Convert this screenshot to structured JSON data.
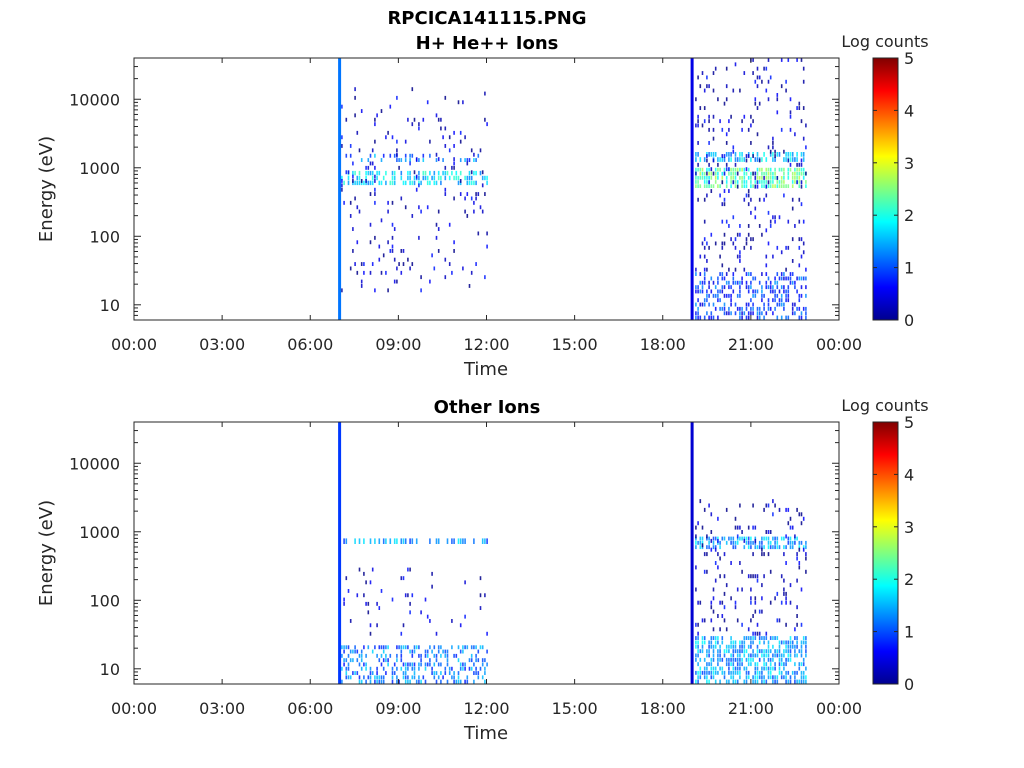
{
  "figure_title": "RPCICA141115.PNG",
  "chart_data": [
    {
      "type": "heatmap",
      "title": "H+ He++ Ions",
      "xlabel": "Time",
      "ylabel": "Energy (eV)",
      "x_ticks": [
        "00:00",
        "03:00",
        "06:00",
        "09:00",
        "12:00",
        "15:00",
        "18:00",
        "21:00",
        "00:00"
      ],
      "xlim_hours": [
        0,
        24
      ],
      "y_scale": "log",
      "y_ticks": [
        "10",
        "100",
        "1000",
        "10000"
      ],
      "ylim": [
        6,
        40000
      ],
      "colorbar": {
        "label": "Log counts",
        "ticks": [
          "0",
          "1",
          "2",
          "3",
          "4",
          "5"
        ],
        "range": [
          0,
          5
        ],
        "colormap": "jet"
      },
      "vertical_lines": [
        {
          "time_h": 7.0,
          "value": 1.2
        },
        {
          "time_h": 19.0,
          "value": 0.5
        }
      ],
      "regions": [
        {
          "t0": 7.05,
          "t1": 12.0,
          "e0": 550,
          "e1": 900,
          "value": 1.7,
          "density": 0.55
        },
        {
          "t0": 7.05,
          "t1": 12.0,
          "e0": 1200,
          "e1": 1600,
          "value": 1.2,
          "density": 0.25
        },
        {
          "t0": 7.05,
          "t1": 12.0,
          "e0": 15,
          "e1": 15000,
          "value": 0.3,
          "density": 0.06
        },
        {
          "t0": 19.1,
          "t1": 22.9,
          "e0": 500,
          "e1": 1000,
          "value": 2.3,
          "density": 0.7
        },
        {
          "t0": 19.1,
          "t1": 22.9,
          "e0": 1200,
          "e1": 1700,
          "value": 1.6,
          "density": 0.5
        },
        {
          "t0": 19.1,
          "t1": 22.9,
          "e0": 6,
          "e1": 30,
          "value": 0.9,
          "density": 0.45
        },
        {
          "t0": 19.1,
          "t1": 22.9,
          "e0": 30,
          "e1": 40000,
          "value": 0.3,
          "density": 0.1
        }
      ]
    },
    {
      "type": "heatmap",
      "title": "Other Ions",
      "xlabel": "Time",
      "ylabel": "Energy (eV)",
      "x_ticks": [
        "00:00",
        "03:00",
        "06:00",
        "09:00",
        "12:00",
        "15:00",
        "18:00",
        "21:00",
        "00:00"
      ],
      "xlim_hours": [
        0,
        24
      ],
      "y_scale": "log",
      "y_ticks": [
        "10",
        "100",
        "1000",
        "10000"
      ],
      "ylim": [
        6,
        40000
      ],
      "colorbar": {
        "label": "Log counts",
        "ticks": [
          "0",
          "1",
          "2",
          "3",
          "4",
          "5"
        ],
        "range": [
          0,
          5
        ],
        "colormap": "jet"
      },
      "vertical_lines": [
        {
          "time_h": 7.0,
          "value": 0.9
        },
        {
          "time_h": 19.0,
          "value": 0.4
        }
      ],
      "regions": [
        {
          "t0": 7.05,
          "t1": 12.0,
          "e0": 650,
          "e1": 800,
          "value": 1.3,
          "density": 0.5
        },
        {
          "t0": 7.05,
          "t1": 12.0,
          "e0": 6,
          "e1": 22,
          "value": 1.2,
          "density": 0.4
        },
        {
          "t0": 7.05,
          "t1": 12.0,
          "e0": 30,
          "e1": 300,
          "value": 0.3,
          "density": 0.04
        },
        {
          "t0": 19.1,
          "t1": 22.9,
          "e0": 550,
          "e1": 850,
          "value": 1.4,
          "density": 0.6
        },
        {
          "t0": 19.1,
          "t1": 22.9,
          "e0": 6,
          "e1": 30,
          "value": 1.4,
          "density": 0.6
        },
        {
          "t0": 19.1,
          "t1": 22.9,
          "e0": 30,
          "e1": 3000,
          "value": 0.3,
          "density": 0.1
        }
      ]
    }
  ]
}
